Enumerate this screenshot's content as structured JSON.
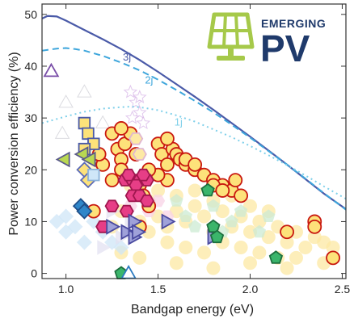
{
  "logo": {
    "text_line1": "EMERGING",
    "text_line2": "PV",
    "icon": "solar-panel-icon",
    "icon_color": "#a6c94a",
    "text_color": "#1f3a6b"
  },
  "chart_data": {
    "type": "scatter",
    "title": "",
    "xlabel": "Bandgap energy  (eV)",
    "ylabel": "Power conversion efficiency (%)",
    "xlim": [
      0.87,
      2.52
    ],
    "ylim": [
      -1,
      52
    ],
    "xticks": [
      1.0,
      1.5,
      2.0,
      2.5
    ],
    "xtick_labels": [
      "1.0",
      "1.5",
      "2.0",
      "2.5"
    ],
    "yticks": [
      0,
      10,
      20,
      30,
      40,
      50
    ],
    "ytick_labels": [
      "0",
      "10",
      "20",
      "30",
      "40",
      "50"
    ],
    "grid": false,
    "limit_lines": [
      {
        "label": "3j",
        "style": "solid",
        "color": "#4a5aa8",
        "x": [
          0.87,
          0.9,
          0.95,
          1.0,
          1.1,
          1.2,
          1.3,
          1.4,
          1.5,
          1.6,
          1.7,
          1.8,
          1.9,
          2.0,
          2.1,
          2.2,
          2.3,
          2.4,
          2.52
        ],
        "y": [
          49.2,
          49.7,
          49.6,
          48.8,
          47.0,
          45.2,
          43.3,
          41.2,
          38.9,
          36.5,
          34.1,
          31.6,
          29.0,
          26.4,
          23.7,
          21.0,
          18.2,
          15.4,
          12.4
        ]
      },
      {
        "label": "2j",
        "style": "dashed",
        "color": "#3ea6dc",
        "x": [
          0.87,
          0.95,
          1.0,
          1.05,
          1.1,
          1.2,
          1.3,
          1.4,
          1.5,
          1.6,
          1.7,
          1.8,
          1.9,
          2.0,
          2.1,
          2.2,
          2.3,
          2.4,
          2.52
        ],
        "y": [
          43.0,
          43.4,
          43.5,
          43.3,
          43.0,
          42.0,
          40.7,
          39.2,
          37.4,
          35.4,
          33.3,
          31.1,
          28.7,
          26.2,
          23.6,
          21.0,
          18.3,
          15.5,
          12.3
        ]
      },
      {
        "label": "1j",
        "style": "dotted",
        "color": "#7fd0ea",
        "x": [
          0.87,
          0.95,
          1.0,
          1.1,
          1.2,
          1.3,
          1.35,
          1.4,
          1.5,
          1.6,
          1.7,
          1.8,
          1.9,
          2.0,
          2.1,
          2.2,
          2.3,
          2.4,
          2.52
        ],
        "y": [
          29.0,
          29.8,
          30.3,
          31.2,
          31.8,
          32.1,
          32.2,
          32.1,
          31.5,
          30.5,
          29.3,
          27.8,
          26.3,
          24.6,
          22.8,
          20.9,
          18.9,
          16.8,
          14.4
        ]
      }
    ],
    "series": [
      {
        "marker": "circle",
        "fill": "#fde9a4",
        "stroke": "#fde9a4",
        "faded": true,
        "points": [
          [
            1.3,
            12
          ],
          [
            1.4,
            10
          ],
          [
            1.45,
            14
          ],
          [
            1.5,
            11
          ],
          [
            1.55,
            9
          ],
          [
            1.6,
            12
          ],
          [
            1.65,
            10
          ],
          [
            1.7,
            13
          ],
          [
            1.75,
            11
          ],
          [
            1.8,
            8
          ],
          [
            1.85,
            12
          ],
          [
            1.9,
            9
          ],
          [
            1.95,
            11
          ],
          [
            2.0,
            8
          ],
          [
            2.05,
            10
          ],
          [
            2.1,
            7
          ],
          [
            2.15,
            9
          ],
          [
            2.2,
            6
          ],
          [
            2.25,
            8
          ],
          [
            2.3,
            5
          ],
          [
            2.35,
            7
          ],
          [
            2.4,
            6
          ],
          [
            2.45,
            5
          ],
          [
            1.6,
            15
          ],
          [
            1.7,
            16
          ],
          [
            1.8,
            14
          ],
          [
            1.9,
            15
          ],
          [
            2.0,
            13
          ],
          [
            2.1,
            12
          ],
          [
            1.35,
            17
          ],
          [
            1.5,
            16
          ],
          [
            1.55,
            6
          ],
          [
            1.65,
            5
          ],
          [
            1.75,
            4
          ],
          [
            1.85,
            6
          ],
          [
            1.95,
            5
          ],
          [
            2.05,
            4
          ],
          [
            2.15,
            3
          ],
          [
            2.25,
            3
          ],
          [
            1.45,
            8
          ],
          [
            1.25,
            9
          ],
          [
            1.3,
            4
          ],
          [
            1.4,
            3
          ],
          [
            1.6,
            2
          ],
          [
            1.8,
            1
          ],
          [
            2.0,
            2
          ],
          [
            2.2,
            1
          ],
          [
            2.4,
            2
          ]
        ]
      },
      {
        "marker": "diamond",
        "fill": "#cfe6f8",
        "stroke": "#cfe6f8",
        "faded": true,
        "points": [
          [
            0.95,
            10
          ],
          [
            1.0,
            11
          ],
          [
            1.05,
            9
          ],
          [
            1.1,
            12
          ],
          [
            1.0,
            8
          ],
          [
            1.15,
            10
          ],
          [
            1.2,
            8
          ],
          [
            1.25,
            6
          ],
          [
            1.1,
            6
          ],
          [
            1.3,
            5
          ]
        ]
      },
      {
        "marker": "pentagon",
        "fill": "#cdebd4",
        "stroke": "#cdebd4",
        "faded": true,
        "points": [
          [
            1.6,
            14
          ],
          [
            1.65,
            11
          ],
          [
            1.7,
            9
          ],
          [
            1.8,
            13
          ],
          [
            1.9,
            10
          ],
          [
            1.85,
            8
          ],
          [
            1.95,
            12
          ],
          [
            2.05,
            8
          ],
          [
            2.1,
            11
          ]
        ]
      },
      {
        "marker": "triangle-right",
        "fill": "#e4e2f2",
        "stroke": "#e4e2f2",
        "faded": true,
        "points": [
          [
            1.2,
            9
          ],
          [
            1.25,
            12
          ],
          [
            1.3,
            7
          ],
          [
            1.2,
            5
          ],
          [
            1.35,
            10
          ]
        ]
      },
      {
        "marker": "hexagon",
        "fill": "#f9d4e6",
        "stroke": "#f9d4e6",
        "faded": true,
        "points": [
          [
            1.35,
            13
          ],
          [
            1.4,
            15
          ],
          [
            1.45,
            12
          ],
          [
            1.5,
            14
          ],
          [
            1.55,
            11
          ]
        ]
      },
      {
        "marker": "triangle-up",
        "fill": "#ffffff",
        "stroke": "#cfcfd6",
        "faded": true,
        "points": [
          [
            0.98,
            27
          ],
          [
            1.1,
            35
          ],
          [
            1.0,
            33
          ],
          [
            1.2,
            29
          ]
        ]
      },
      {
        "marker": "star",
        "fill": "#ffffff",
        "stroke": "#d8b6e8",
        "faded": true,
        "points": [
          [
            1.35,
            35
          ],
          [
            1.38,
            33
          ],
          [
            1.4,
            31
          ],
          [
            1.42,
            29
          ],
          [
            1.4,
            34
          ],
          [
            1.36,
            30
          ]
        ]
      },
      {
        "marker": "square",
        "fill": "#fff6c8",
        "stroke": "#e8d77a",
        "faded": true,
        "points": [
          [
            1.12,
            24
          ],
          [
            1.15,
            21
          ]
        ]
      },
      {
        "marker": "circle",
        "fill": "#fde27a",
        "stroke": "#c9180f",
        "faded": false,
        "points": [
          [
            1.25,
            27
          ],
          [
            1.28,
            24
          ],
          [
            1.3,
            22
          ],
          [
            1.32,
            25
          ],
          [
            1.35,
            27
          ],
          [
            1.38,
            23
          ],
          [
            1.3,
            20
          ],
          [
            1.25,
            18
          ],
          [
            1.2,
            21
          ],
          [
            1.18,
            23
          ],
          [
            1.4,
            17
          ],
          [
            1.42,
            15
          ],
          [
            1.45,
            13
          ],
          [
            1.4,
            9
          ],
          [
            1.5,
            25
          ],
          [
            1.52,
            23
          ],
          [
            1.55,
            21
          ],
          [
            1.58,
            24
          ],
          [
            1.6,
            23
          ],
          [
            1.62,
            22
          ],
          [
            1.65,
            21
          ],
          [
            1.7,
            20
          ],
          [
            1.75,
            19
          ],
          [
            1.8,
            18
          ],
          [
            1.85,
            17
          ],
          [
            1.9,
            16
          ],
          [
            1.95,
            15
          ],
          [
            2.35,
            10
          ],
          [
            2.35,
            9
          ],
          [
            2.45,
            3
          ],
          [
            2.2,
            8
          ],
          [
            1.55,
            18
          ],
          [
            1.5,
            19
          ],
          [
            1.45,
            20
          ],
          [
            1.15,
            12
          ],
          [
            1.3,
            28
          ],
          [
            1.55,
            26
          ],
          [
            1.65,
            22
          ],
          [
            1.7,
            21
          ],
          [
            1.8,
            17
          ],
          [
            1.85,
            16
          ],
          [
            1.92,
            18
          ]
        ]
      },
      {
        "marker": "hexagon",
        "fill": "#e73e86",
        "stroke": "#a0174f",
        "faded": false,
        "points": [
          [
            1.32,
            18
          ],
          [
            1.36,
            18
          ],
          [
            1.4,
            18
          ],
          [
            1.44,
            18
          ],
          [
            1.34,
            19
          ],
          [
            1.38,
            17
          ],
          [
            1.42,
            19
          ],
          [
            1.36,
            15
          ],
          [
            1.4,
            15
          ],
          [
            1.44,
            14
          ],
          [
            1.25,
            13
          ],
          [
            1.33,
            12
          ],
          [
            1.2,
            9
          ]
        ]
      },
      {
        "marker": "hexagon",
        "fill": "#fde9a4",
        "stroke": "#e0b7d0",
        "faded": false,
        "points": [
          [
            1.4,
            23
          ],
          [
            1.38,
            26
          ]
        ]
      },
      {
        "marker": "square",
        "fill": "#fde27a",
        "stroke": "#4a5aa8",
        "faded": false,
        "points": [
          [
            1.1,
            29
          ],
          [
            1.12,
            27
          ],
          [
            1.15,
            25
          ],
          [
            1.1,
            24
          ]
        ]
      },
      {
        "marker": "triangle-left",
        "fill": "#b9d852",
        "stroke": "#5a5a8a",
        "faded": false,
        "points": [
          [
            0.99,
            22
          ],
          [
            1.09,
            23
          ],
          [
            1.13,
            22
          ]
        ]
      },
      {
        "marker": "diamond",
        "fill": "#fde27a",
        "stroke": "#5a6ab8",
        "faded": false,
        "points": [
          [
            1.1,
            20
          ],
          [
            1.12,
            18
          ]
        ]
      },
      {
        "marker": "square",
        "fill": "#cfe6f8",
        "stroke": "#8ab0d8",
        "faded": false,
        "points": [
          [
            1.15,
            19
          ]
        ]
      },
      {
        "marker": "diamond",
        "fill": "#2f86c9",
        "stroke": "#1f4f8a",
        "faded": false,
        "points": [
          [
            1.08,
            13
          ],
          [
            1.1,
            12
          ]
        ]
      },
      {
        "marker": "triangle-right",
        "fill": "#9fa1d9",
        "stroke": "#4a4aa0",
        "faded": false,
        "points": [
          [
            1.33,
            8
          ],
          [
            1.37,
            10
          ],
          [
            1.55,
            10
          ],
          [
            1.8,
            7
          ],
          [
            1.37,
            7
          ],
          [
            1.25,
            9
          ],
          [
            1.39,
            8
          ]
        ]
      },
      {
        "marker": "triangle-up",
        "fill": "#ffffff",
        "stroke": "#7a4ea8",
        "faded": false,
        "points": [
          [
            0.92,
            39
          ]
        ]
      },
      {
        "marker": "pentagon",
        "fill": "#3bb56b",
        "stroke": "#1e6f3f",
        "faded": false,
        "points": [
          [
            1.77,
            16
          ],
          [
            1.8,
            9
          ],
          [
            1.82,
            7
          ],
          [
            2.14,
            3
          ],
          [
            1.3,
            0
          ]
        ]
      },
      {
        "marker": "triangle-up",
        "fill": "#ffffff",
        "stroke": "#2a7ac0",
        "faded": false,
        "points": [
          [
            1.34,
            0
          ]
        ]
      }
    ]
  }
}
